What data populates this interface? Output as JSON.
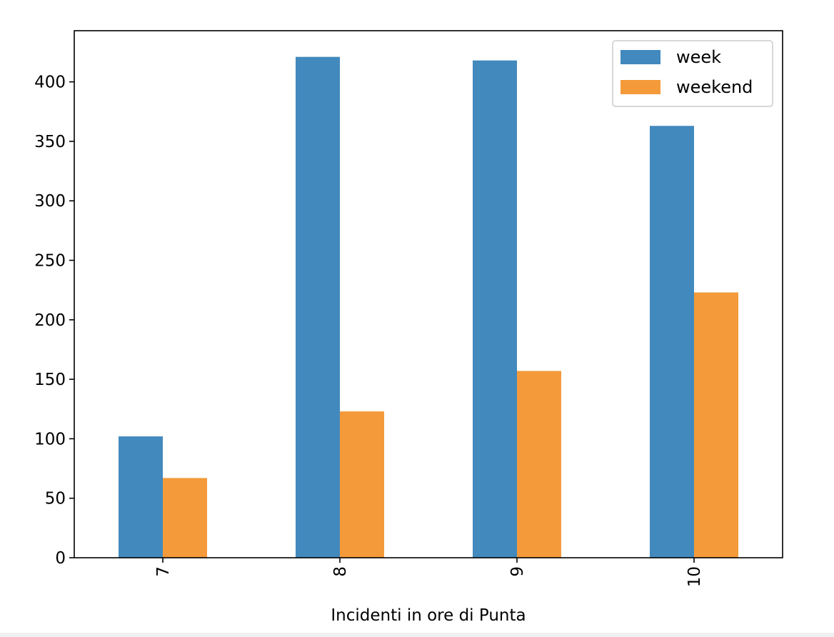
{
  "chart_data": {
    "type": "bar",
    "categories": [
      "7",
      "8",
      "9",
      "10"
    ],
    "series": [
      {
        "name": "week",
        "values": [
          102,
          421,
          418,
          363
        ]
      },
      {
        "name": "weekend",
        "values": [
          67,
          123,
          157,
          223
        ]
      }
    ],
    "colors": {
      "week": "#4289bd",
      "weekend": "#f49a3a"
    },
    "xlabel": "Incidenti in ore di Punta",
    "ylabel": "",
    "ylim": [
      0,
      443
    ],
    "yticks": [
      0,
      50,
      100,
      150,
      200,
      250,
      300,
      350,
      400
    ],
    "xtick_rotation": 90,
    "grid": false,
    "legend_position": "top-right"
  }
}
